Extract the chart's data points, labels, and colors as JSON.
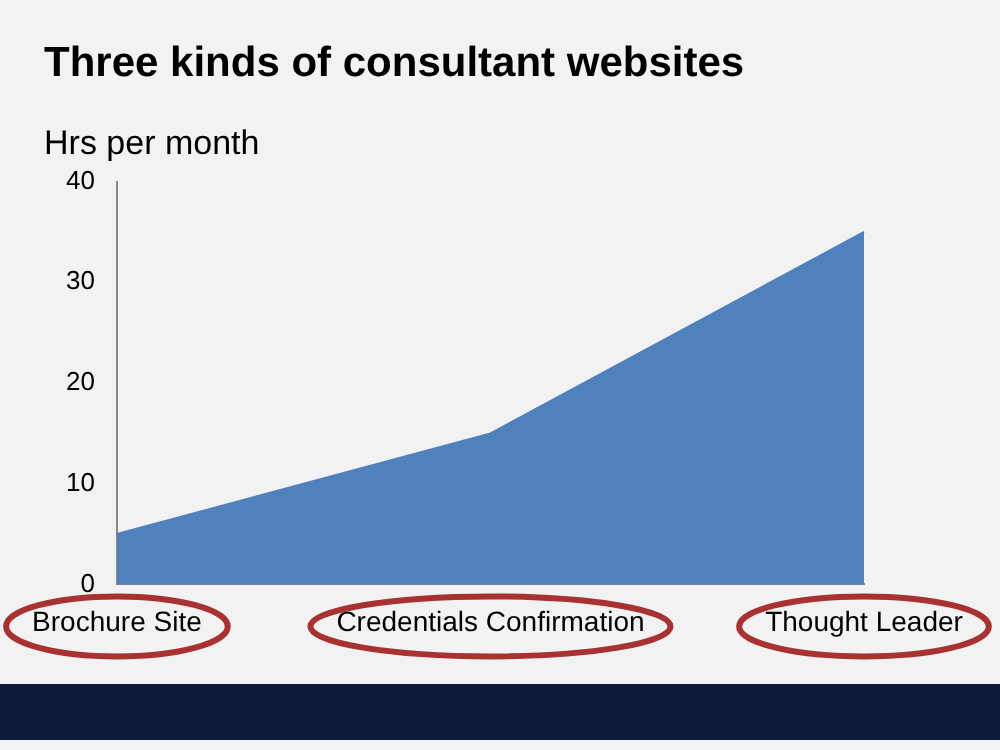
{
  "chart_data": {
    "type": "area",
    "title": "Three kinds of consultant websites",
    "ylabel": "Hrs per month",
    "categories": [
      "Brochure Site",
      "Credentials Confirmation",
      "Thought Leader"
    ],
    "values": [
      5,
      15,
      35
    ],
    "color": "#4f81bd",
    "ylim": [
      0,
      40
    ],
    "yticks": [
      0,
      10,
      20,
      30,
      40
    ],
    "grid": false,
    "legend": false
  }
}
